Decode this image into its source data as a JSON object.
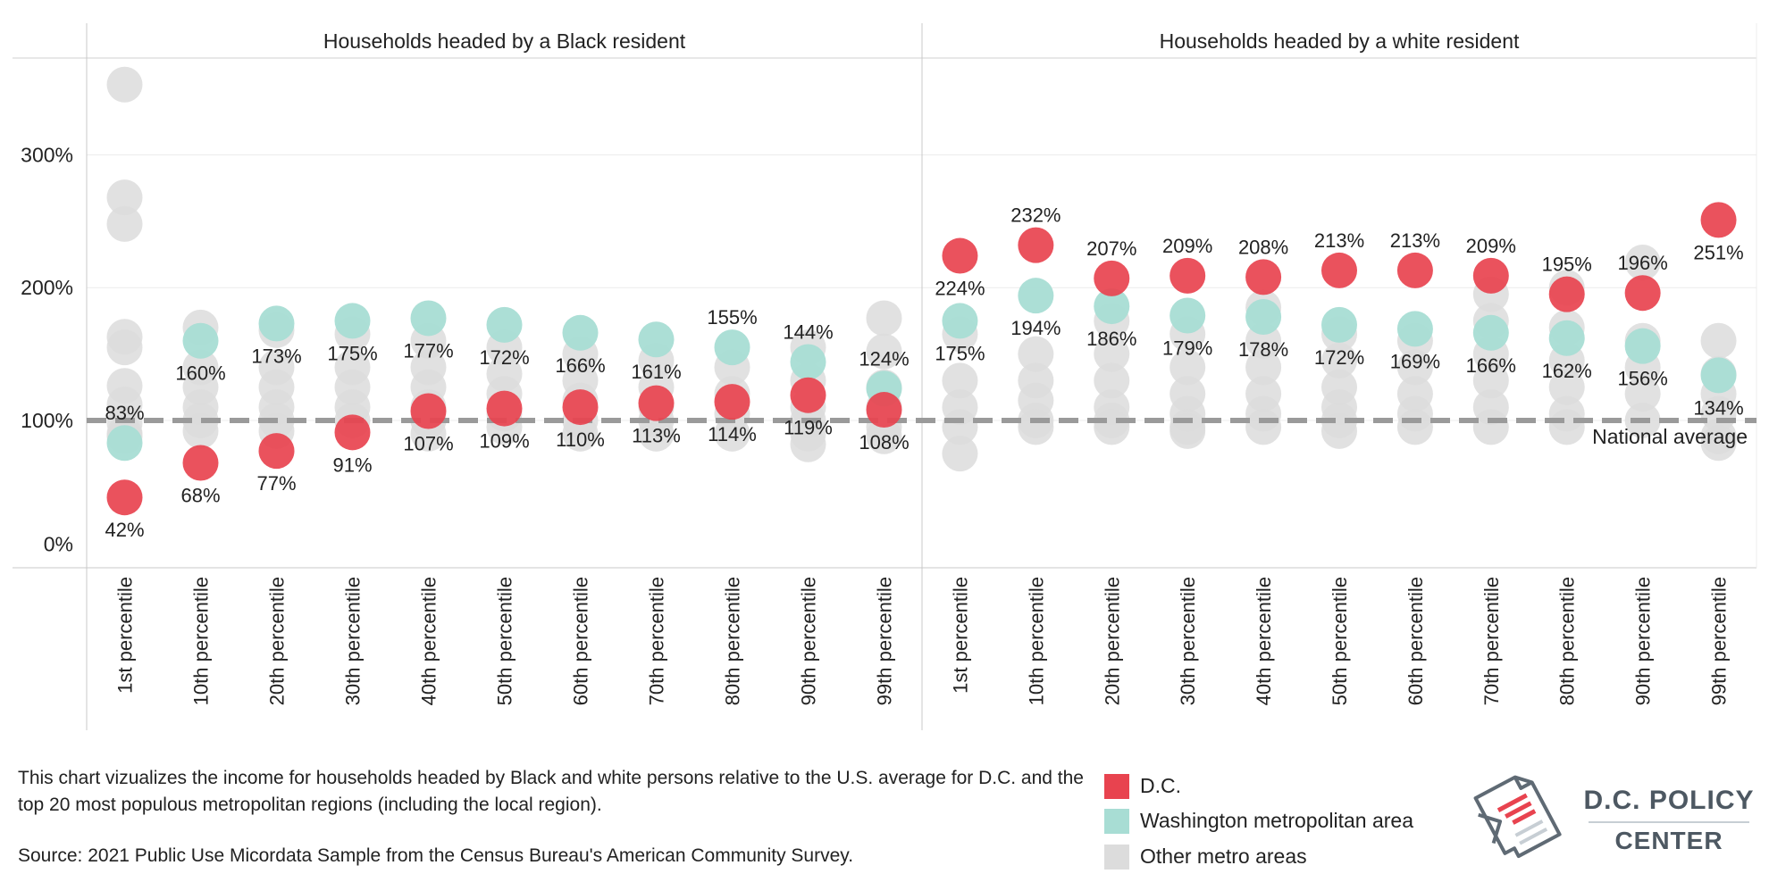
{
  "chart_data": {
    "type": "scatter",
    "facets": [
      "Households headed by a Black resident",
      "Households headed by a white resident"
    ],
    "categories": [
      "1st percentile",
      "10th percentile",
      "20th percentile",
      "30th percentile",
      "40th percentile",
      "50th percentile",
      "60th percentile",
      "70th percentile",
      "80th percentile",
      "90th percentile",
      "99th percentile"
    ],
    "y_ticks": [
      {
        "value": 0,
        "label": "0%"
      },
      {
        "value": 100,
        "label": "100%"
      },
      {
        "value": 200,
        "label": "200%"
      },
      {
        "value": 300,
        "label": "300%"
      }
    ],
    "ylim": [
      -11,
      373
    ],
    "reference_line": {
      "value": 100,
      "label": "National average"
    },
    "series": [
      {
        "name": "D.C.",
        "color": "#e8434f",
        "values": [
          [
            42,
            68,
            77,
            91,
            107,
            109,
            110,
            113,
            114,
            119,
            108
          ],
          [
            224,
            232,
            207,
            209,
            208,
            213,
            213,
            209,
            195,
            196,
            251
          ]
        ],
        "labels": [
          [
            "42%",
            "68%",
            "77%",
            "91%",
            "107%",
            "109%",
            "110%",
            "113%",
            "114%",
            "119%",
            "108%"
          ],
          [
            "224%",
            "232%",
            "207%",
            "209%",
            "208%",
            "213%",
            "213%",
            "209%",
            "195%",
            "196%",
            "251%"
          ]
        ]
      },
      {
        "name": "Washington metropolitan area",
        "color": "#a8ddd4",
        "values": [
          [
            83,
            160,
            173,
            175,
            177,
            172,
            166,
            161,
            155,
            144,
            124
          ],
          [
            175,
            194,
            186,
            179,
            178,
            172,
            169,
            166,
            162,
            156,
            134
          ]
        ],
        "labels": [
          [
            "83%",
            "160%",
            "173%",
            "175%",
            "177%",
            "172%",
            "166%",
            "161%",
            "155%",
            "144%",
            "124%"
          ],
          [
            "175%",
            "194%",
            "186%",
            "179%",
            "178%",
            "172%",
            "169%",
            "166%",
            "162%",
            "156%",
            "134%"
          ]
        ]
      },
      {
        "name": "Other metro areas",
        "color": "#dcdcdc",
        "values": [
          [
            [
              353,
              268,
              248,
              163,
              155,
              126,
              112,
              98,
              88,
              90
            ],
            [
              170,
              140,
              125,
              110,
              100,
              92
            ],
            [
              168,
              140,
              125,
              110,
              100,
              92
            ],
            [
              165,
              140,
              125,
              110,
              100
            ],
            [
              160,
              140,
              125,
              110,
              100,
              90
            ],
            [
              155,
              135,
              120,
              105,
              95
            ],
            [
              150,
              130,
              115,
              100,
              90
            ],
            [
              145,
              125,
              110,
              100,
              90
            ],
            [
              140,
              120,
              105,
              90
            ],
            [
              155,
              130,
              110,
              100,
              90,
              82
            ],
            [
              177,
              152,
              125,
              110,
              95,
              88
            ]
          ],
          [
            [
              165,
              130,
              110,
              95,
              75
            ],
            [
              150,
              130,
              115,
              100,
              95
            ],
            [
              175,
              150,
              130,
              110,
              100,
              95
            ],
            [
              165,
              140,
              120,
              105,
              95,
              92
            ],
            [
              185,
              160,
              140,
              120,
              105,
              95
            ],
            [
              165,
              145,
              125,
              110,
              100,
              92
            ],
            [
              160,
              140,
              120,
              105,
              95
            ],
            [
              195,
              175,
              150,
              130,
              110,
              95
            ],
            [
              200,
              170,
              145,
              125,
              105,
              95
            ],
            [
              219,
              160,
              140,
              120,
              100
            ],
            [
              160,
              135,
              120,
              105,
              88,
              83
            ]
          ]
        ]
      }
    ],
    "legend": [
      {
        "label": "D.C.",
        "color": "#e8434f"
      },
      {
        "label": "Washington metropolitan area",
        "color": "#a8ddd4"
      },
      {
        "label": "Other metro areas",
        "color": "#dcdcdc"
      }
    ]
  },
  "notes": {
    "description": "This chart vizualizes the income for households headed by Black and white persons relative to the U.S. average for D.C. and the top 20 most populous metropolitan regions (including the local region).",
    "source": "Source: 2021 Public Use Micordata Sample from the Census Bureau's American Community Survey."
  },
  "logo": {
    "line1": "D.C. POLICY",
    "line2": "CENTER",
    "icon": "dc-map-document-icon"
  }
}
